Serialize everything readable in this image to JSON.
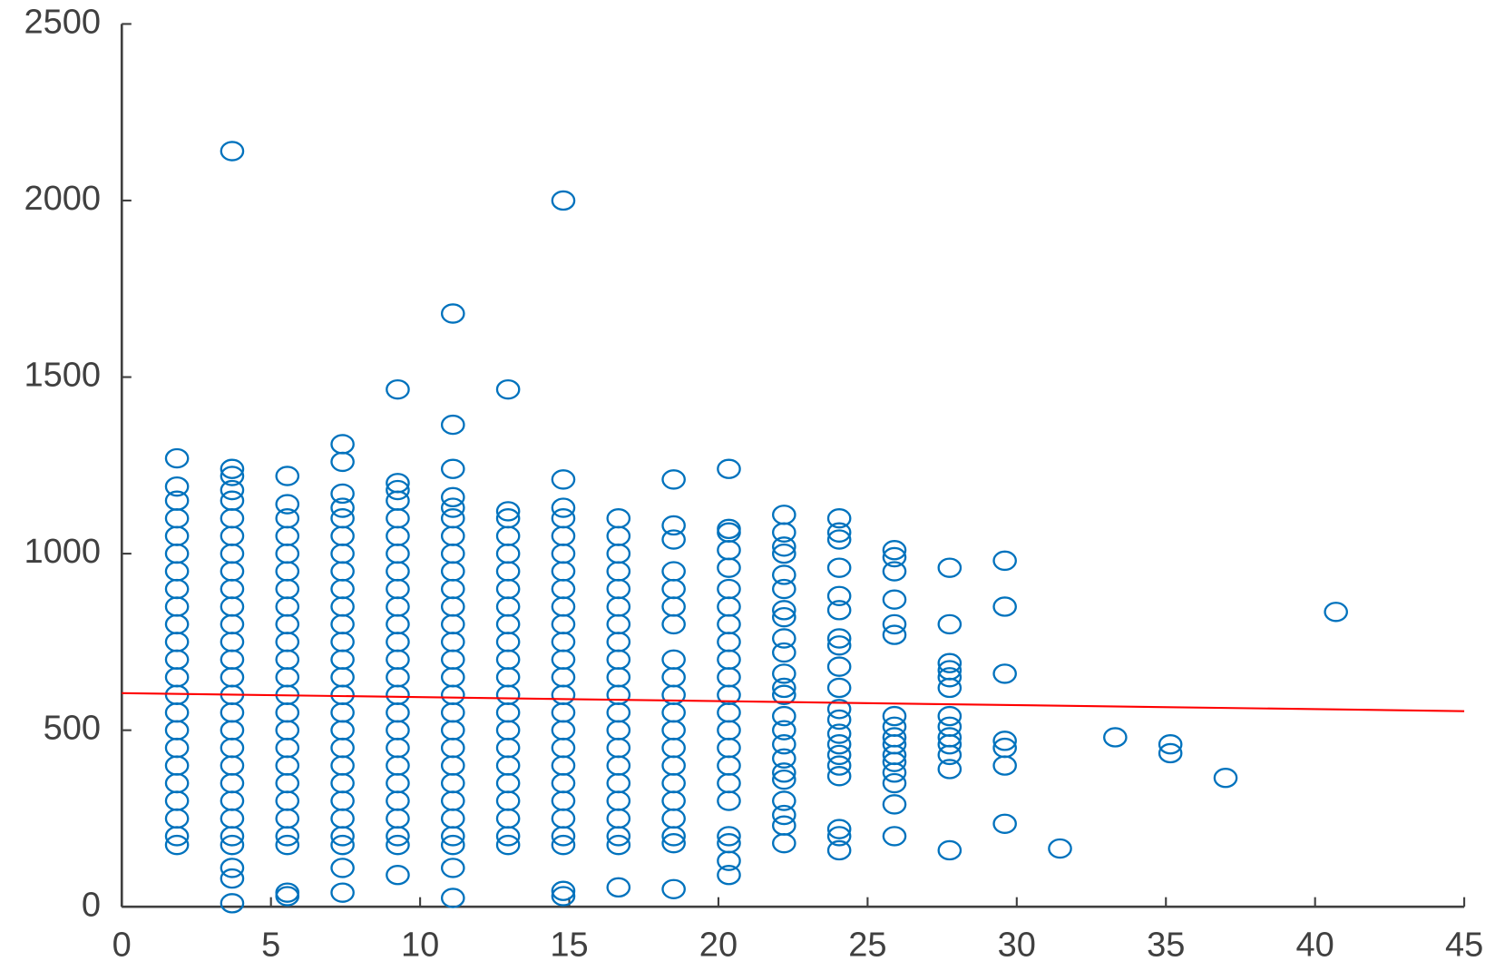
{
  "chart_data": {
    "type": "scatter",
    "xlim": [
      0,
      45
    ],
    "xticks": [
      0,
      5,
      10,
      15,
      20,
      25,
      30,
      35,
      40,
      45
    ],
    "ylim": [
      0,
      2500
    ],
    "yticks": [
      0,
      500,
      1000,
      1500,
      2000,
      2500
    ],
    "series": [
      {
        "color": "#0072bd",
        "x": [
          1.85,
          1.85,
          1.85,
          1.85,
          1.85,
          1.85,
          1.85,
          1.85,
          1.85,
          1.85,
          1.85,
          1.85,
          1.85,
          1.85,
          1.85,
          1.85,
          1.85,
          1.85,
          1.85,
          1.85,
          1.85,
          1.85,
          1.85,
          3.7,
          3.7,
          3.7,
          3.7,
          3.7,
          3.7,
          3.7,
          3.7,
          3.7,
          3.7,
          3.7,
          3.7,
          3.7,
          3.7,
          3.7,
          3.7,
          3.7,
          3.7,
          3.7,
          3.7,
          3.7,
          3.7,
          3.7,
          3.7,
          3.7,
          3.7,
          3.7,
          3.7,
          5.55,
          5.55,
          5.55,
          5.55,
          5.55,
          5.55,
          5.55,
          5.55,
          5.55,
          5.55,
          5.55,
          5.55,
          5.55,
          5.55,
          5.55,
          5.55,
          5.55,
          5.55,
          5.55,
          5.55,
          5.55,
          5.55,
          5.55,
          5.55,
          7.4,
          7.4,
          7.4,
          7.4,
          7.4,
          7.4,
          7.4,
          7.4,
          7.4,
          7.4,
          7.4,
          7.4,
          7.4,
          7.4,
          7.4,
          7.4,
          7.4,
          7.4,
          7.4,
          7.4,
          7.4,
          7.4,
          7.4,
          7.4,
          7.4,
          7.4,
          9.25,
          9.25,
          9.25,
          9.25,
          9.25,
          9.25,
          9.25,
          9.25,
          9.25,
          9.25,
          9.25,
          9.25,
          9.25,
          9.25,
          9.25,
          9.25,
          9.25,
          9.25,
          9.25,
          9.25,
          9.25,
          9.25,
          9.25,
          9.25,
          9.25,
          11.1,
          11.1,
          11.1,
          11.1,
          11.1,
          11.1,
          11.1,
          11.1,
          11.1,
          11.1,
          11.1,
          11.1,
          11.1,
          11.1,
          11.1,
          11.1,
          11.1,
          11.1,
          11.1,
          11.1,
          11.1,
          11.1,
          11.1,
          11.1,
          11.1,
          11.1,
          11.1,
          12.95,
          12.95,
          12.95,
          12.95,
          12.95,
          12.95,
          12.95,
          12.95,
          12.95,
          12.95,
          12.95,
          12.95,
          12.95,
          12.95,
          12.95,
          12.95,
          12.95,
          12.95,
          12.95,
          12.95,
          12.95,
          12.95,
          14.8,
          14.8,
          14.8,
          14.8,
          14.8,
          14.8,
          14.8,
          14.8,
          14.8,
          14.8,
          14.8,
          14.8,
          14.8,
          14.8,
          14.8,
          14.8,
          14.8,
          14.8,
          14.8,
          14.8,
          14.8,
          14.8,
          14.8,
          14.8,
          14.8,
          16.65,
          16.65,
          16.65,
          16.65,
          16.65,
          16.65,
          16.65,
          16.65,
          16.65,
          16.65,
          16.65,
          16.65,
          16.65,
          16.65,
          16.65,
          16.65,
          16.65,
          16.65,
          16.65,
          16.65,
          16.65,
          18.5,
          18.5,
          18.5,
          18.5,
          18.5,
          18.5,
          18.5,
          18.5,
          18.5,
          18.5,
          18.5,
          18.5,
          18.5,
          18.5,
          18.5,
          18.5,
          18.5,
          18.5,
          18.5,
          18.5,
          20.35,
          20.35,
          20.35,
          20.35,
          20.35,
          20.35,
          20.35,
          20.35,
          20.35,
          20.35,
          20.35,
          20.35,
          20.35,
          20.35,
          20.35,
          20.35,
          20.35,
          20.35,
          20.35,
          20.35,
          20.35,
          20.35,
          22.2,
          22.2,
          22.2,
          22.2,
          22.2,
          22.2,
          22.2,
          22.2,
          22.2,
          22.2,
          22.2,
          22.2,
          22.2,
          22.2,
          22.2,
          22.2,
          22.2,
          22.2,
          22.2,
          22.2,
          22.2,
          22.2,
          22.2,
          24.05,
          24.05,
          24.05,
          24.05,
          24.05,
          24.05,
          24.05,
          24.05,
          24.05,
          24.05,
          24.05,
          24.05,
          24.05,
          24.05,
          24.05,
          24.05,
          24.05,
          24.05,
          24.05,
          24.05,
          25.9,
          25.9,
          25.9,
          25.9,
          25.9,
          25.9,
          25.9,
          25.9,
          25.9,
          25.9,
          25.9,
          25.9,
          25.9,
          25.9,
          25.9,
          25.9,
          27.75,
          27.75,
          27.75,
          27.75,
          27.75,
          27.75,
          27.75,
          27.75,
          27.75,
          27.75,
          27.75,
          27.75,
          27.75,
          29.6,
          29.6,
          29.6,
          29.6,
          29.6,
          29.6,
          29.6,
          31.45,
          33.3,
          35.15,
          35.15,
          37,
          40.7
        ],
        "values": [
          175,
          200,
          250,
          300,
          350,
          400,
          450,
          500,
          550,
          600,
          650,
          700,
          750,
          800,
          850,
          900,
          950,
          1000,
          1050,
          1100,
          1150,
          1190,
          1270,
          175,
          200,
          250,
          300,
          350,
          400,
          450,
          500,
          550,
          600,
          650,
          700,
          750,
          800,
          850,
          900,
          950,
          1000,
          1050,
          1100,
          1150,
          1180,
          1220,
          1240,
          2140,
          110,
          80,
          10,
          175,
          200,
          250,
          300,
          350,
          400,
          450,
          500,
          550,
          600,
          650,
          700,
          750,
          800,
          850,
          900,
          950,
          1000,
          1050,
          1100,
          1140,
          1220,
          40,
          30,
          175,
          200,
          250,
          300,
          350,
          400,
          450,
          500,
          550,
          600,
          650,
          700,
          750,
          800,
          850,
          900,
          950,
          1000,
          1050,
          1100,
          1130,
          1170,
          1260,
          1310,
          110,
          40,
          175,
          200,
          250,
          300,
          350,
          400,
          450,
          500,
          550,
          600,
          650,
          700,
          750,
          800,
          850,
          900,
          950,
          1000,
          1050,
          1100,
          1150,
          1180,
          1200,
          1465,
          90,
          175,
          200,
          250,
          300,
          350,
          400,
          450,
          500,
          550,
          600,
          650,
          700,
          750,
          800,
          850,
          900,
          950,
          1000,
          1050,
          1100,
          1130,
          1160,
          1240,
          1365,
          1680,
          110,
          25,
          175,
          200,
          250,
          300,
          350,
          400,
          450,
          500,
          550,
          600,
          650,
          700,
          750,
          800,
          850,
          900,
          950,
          1000,
          1050,
          1100,
          1120,
          1465,
          175,
          200,
          250,
          300,
          350,
          400,
          450,
          500,
          550,
          600,
          650,
          700,
          750,
          800,
          850,
          900,
          950,
          1000,
          1050,
          1100,
          1130,
          1210,
          2000,
          45,
          30,
          175,
          200,
          250,
          300,
          350,
          400,
          450,
          500,
          550,
          600,
          650,
          700,
          750,
          800,
          850,
          900,
          950,
          1000,
          1050,
          1100,
          55,
          180,
          200,
          250,
          300,
          350,
          400,
          450,
          500,
          550,
          600,
          650,
          700,
          800,
          850,
          900,
          950,
          1040,
          1080,
          1210,
          50,
          130,
          180,
          200,
          300,
          350,
          400,
          450,
          500,
          550,
          600,
          650,
          700,
          750,
          800,
          850,
          900,
          960,
          1010,
          1060,
          1070,
          1240,
          90,
          1110,
          1060,
          1020,
          1000,
          940,
          900,
          840,
          820,
          760,
          720,
          660,
          620,
          600,
          540,
          500,
          460,
          420,
          380,
          360,
          300,
          260,
          230,
          180,
          1100,
          1060,
          1040,
          960,
          880,
          840,
          760,
          740,
          680,
          620,
          560,
          530,
          490,
          460,
          430,
          400,
          370,
          220,
          200,
          160,
          1010,
          990,
          950,
          870,
          800,
          770,
          540,
          510,
          480,
          460,
          430,
          410,
          380,
          350,
          290,
          200,
          960,
          800,
          690,
          670,
          650,
          620,
          540,
          510,
          480,
          460,
          430,
          390,
          160,
          980,
          850,
          660,
          470,
          450,
          400,
          235,
          165,
          480,
          460,
          435,
          365,
          835
        ]
      },
      {
        "type": "line",
        "color": "#ff0000",
        "x": [
          0,
          45
        ],
        "values": [
          605,
          554
        ]
      }
    ]
  }
}
